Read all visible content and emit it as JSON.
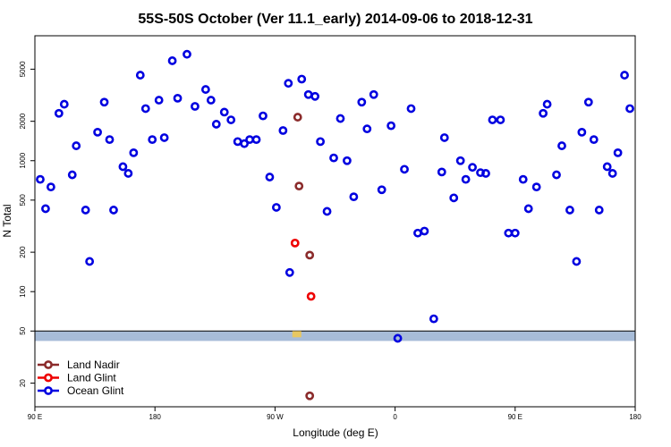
{
  "chart_data": {
    "type": "scatter",
    "title": "55S-50S October (Ver 11.1_early)   2014-09-06 to 2018-12-31",
    "xlabel": "Longitude (deg E)",
    "ylabel": "N Total",
    "y_scale": "log",
    "grid": false,
    "legend_position": "bottom-left",
    "x_ticks": [
      {
        "value": 90,
        "label": "90 E"
      },
      {
        "value": 180,
        "label": "180"
      },
      {
        "value": 270,
        "label": "90 W"
      },
      {
        "value": 360,
        "label": "0"
      },
      {
        "value": 450,
        "label": "90 E"
      },
      {
        "value": 540,
        "label": "180"
      }
    ],
    "y_ticks": [
      {
        "value": 20,
        "label": "20"
      },
      {
        "value": 50,
        "label": "50"
      },
      {
        "value": 100,
        "label": "100"
      },
      {
        "value": 200,
        "label": "200"
      },
      {
        "value": 500,
        "label": "500"
      },
      {
        "value": 1000,
        "label": "1000"
      },
      {
        "value": 2000,
        "label": "2000"
      },
      {
        "value": 5000,
        "label": "5000"
      }
    ],
    "xlim": [
      90,
      540
    ],
    "ylim": [
      13.2,
      9000
    ],
    "band": {
      "y_low": 42,
      "y_high": 50,
      "color": "#a7bcd8",
      "accent_color": "#f2c94c"
    },
    "series": [
      {
        "name": "Land Nadir",
        "color": "#8b2b2b",
        "points": [
          [
            287,
            2150
          ],
          [
            288,
            640
          ],
          [
            296,
            190
          ],
          [
            296,
            16
          ]
        ]
      },
      {
        "name": "Land Glint",
        "color": "#ee0000",
        "points": [
          [
            285,
            235
          ],
          [
            297,
            92
          ]
        ]
      },
      {
        "name": "Ocean Glint",
        "color": "#0000e0",
        "points": [
          [
            94,
            720
          ],
          [
            98,
            430
          ],
          [
            102,
            630
          ],
          [
            108,
            2300
          ],
          [
            112,
            2700
          ],
          [
            118,
            780
          ],
          [
            121,
            1300
          ],
          [
            128,
            420
          ],
          [
            131,
            170
          ],
          [
            137,
            1650
          ],
          [
            142,
            2800
          ],
          [
            146,
            1450
          ],
          [
            149,
            420
          ],
          [
            156,
            900
          ],
          [
            160,
            800
          ],
          [
            164,
            1150
          ],
          [
            169,
            4500
          ],
          [
            173,
            2500
          ],
          [
            178,
            1450
          ],
          [
            183,
            2900
          ],
          [
            187,
            1500
          ],
          [
            193,
            5800
          ],
          [
            197,
            3000
          ],
          [
            204,
            6500
          ],
          [
            210,
            2600
          ],
          [
            218,
            3500
          ],
          [
            222,
            2900
          ],
          [
            226,
            1900
          ],
          [
            232,
            2350
          ],
          [
            237,
            2050
          ],
          [
            242,
            1400
          ],
          [
            247,
            1350
          ],
          [
            251,
            1450
          ],
          [
            256,
            1450
          ],
          [
            261,
            2200
          ],
          [
            266,
            750
          ],
          [
            271,
            440
          ],
          [
            276,
            1700
          ],
          [
            280,
            3900
          ],
          [
            281,
            140
          ],
          [
            290,
            4200
          ],
          [
            295,
            3200
          ],
          [
            300,
            3100
          ],
          [
            304,
            1400
          ],
          [
            309,
            410
          ],
          [
            314,
            1050
          ],
          [
            319,
            2100
          ],
          [
            324,
            1000
          ],
          [
            329,
            530
          ],
          [
            335,
            2800
          ],
          [
            339,
            1750
          ],
          [
            344,
            3200
          ],
          [
            350,
            600
          ],
          [
            357,
            1850
          ],
          [
            367,
            860
          ],
          [
            372,
            2500
          ],
          [
            377,
            280
          ],
          [
            382,
            290
          ],
          [
            389,
            62
          ],
          [
            395,
            820
          ],
          [
            397,
            1500
          ],
          [
            404,
            520
          ],
          [
            409,
            1000
          ],
          [
            413,
            720
          ],
          [
            418,
            890
          ],
          [
            424,
            810
          ],
          [
            428,
            800
          ],
          [
            433,
            2050
          ],
          [
            439,
            2050
          ],
          [
            445,
            280
          ],
          [
            450,
            280
          ],
          [
            456,
            720
          ],
          [
            460,
            430
          ],
          [
            466,
            630
          ],
          [
            471,
            2300
          ],
          [
            474,
            2700
          ],
          [
            481,
            780
          ],
          [
            485,
            1300
          ],
          [
            491,
            420
          ],
          [
            496,
            170
          ],
          [
            500,
            1650
          ],
          [
            505,
            2800
          ],
          [
            509,
            1450
          ],
          [
            513,
            420
          ],
          [
            519,
            900
          ],
          [
            523,
            800
          ],
          [
            527,
            1150
          ],
          [
            532,
            4500
          ],
          [
            536,
            2500
          ],
          [
            362,
            44
          ]
        ]
      }
    ]
  }
}
